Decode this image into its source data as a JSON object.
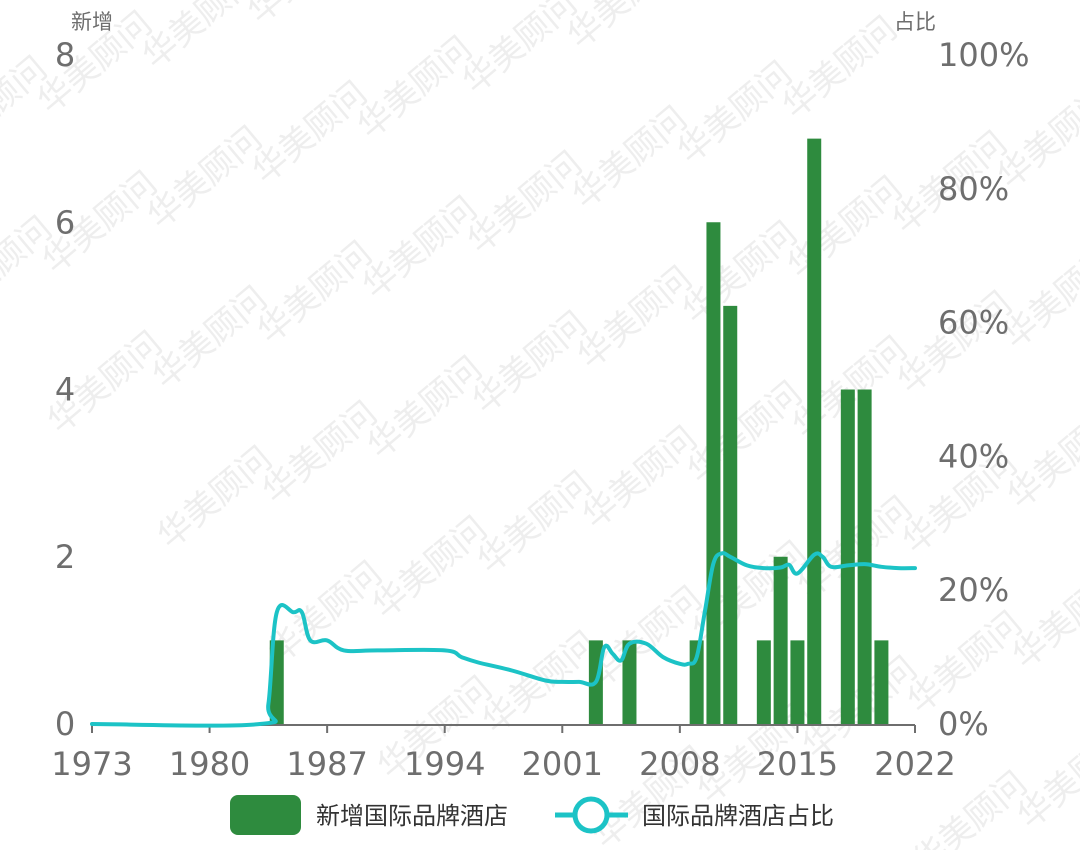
{
  "watermark": "华美顾问",
  "colors": {
    "bar": "#2e8b3e",
    "line": "#1cc3c6",
    "axis": "#6e6e6e",
    "text": "#6e6e6e",
    "legend_text": "#333333"
  },
  "chart_data": {
    "type": "bar",
    "title": "",
    "xlabel": "",
    "ylabel": "新增",
    "y2label": "占比",
    "xlim": [
      1973,
      2022
    ],
    "ylim": [
      0,
      8
    ],
    "y2lim": [
      0,
      100
    ],
    "x_ticks": [
      "1973",
      "1980",
      "1987",
      "1994",
      "2001",
      "2008",
      "2015",
      "2022"
    ],
    "y_ticks": [
      "0",
      "2",
      "4",
      "6",
      "8"
    ],
    "y2_ticks": [
      "0%",
      "20%",
      "40%",
      "60%",
      "80%",
      "100%"
    ],
    "grid": false,
    "legend_position": "bottom",
    "series": [
      {
        "name": "新增国际品牌酒店",
        "type": "bar",
        "axis": "left",
        "x": [
          1984,
          2003,
          2005,
          2009,
          2010,
          2011,
          2013,
          2014,
          2015,
          2016,
          2018,
          2019,
          2020
        ],
        "values": [
          1,
          1,
          1,
          1,
          6,
          5,
          1,
          2,
          1,
          7,
          4,
          4,
          1
        ]
      },
      {
        "name": "国际品牌酒店占比",
        "type": "line",
        "axis": "right",
        "x": [
          1973,
          1983,
          1983.5,
          1984,
          1985,
          1985.5,
          1986,
          1987,
          1988,
          1990,
          1994,
          1995,
          1996,
          1998,
          2000,
          2001,
          2002,
          2003,
          2003.5,
          2004,
          2004.5,
          2005,
          2006,
          2007,
          2008,
          2008.5,
          2009,
          2009.5,
          2010,
          2010.5,
          2011,
          2012,
          2013,
          2014,
          2014.5,
          2015,
          2016,
          2016.5,
          2017,
          2018,
          2019,
          2020,
          2021,
          2022
        ],
        "values": [
          0,
          0,
          3,
          16.7,
          16.7,
          16.7,
          12.5,
          12.5,
          11,
          11,
          11,
          10,
          9.2,
          8,
          6.5,
          6.3,
          6.3,
          6.3,
          11.5,
          10.5,
          9.5,
          12,
          12,
          10,
          9,
          9,
          10,
          17,
          24,
          25.5,
          25,
          23.7,
          23.3,
          23.4,
          23.8,
          22.5,
          25.3,
          25,
          23.5,
          23.7,
          23.9,
          23.5,
          23.3,
          23.3
        ]
      }
    ]
  }
}
